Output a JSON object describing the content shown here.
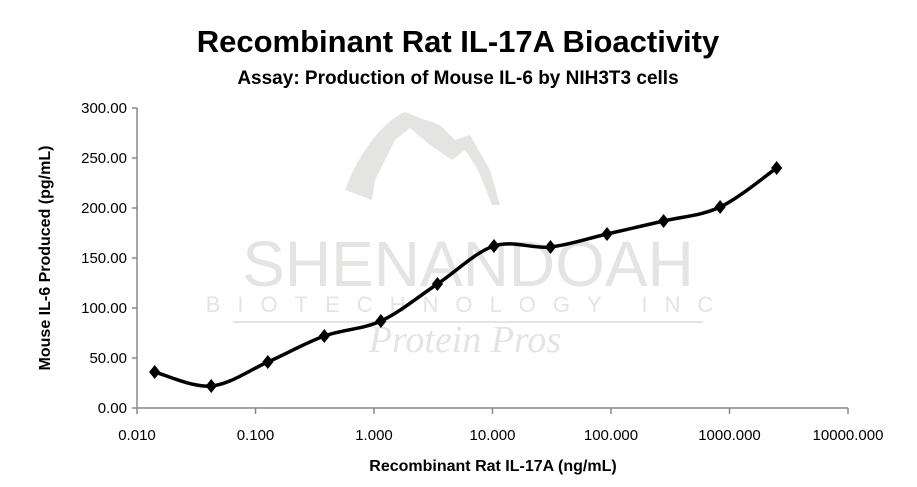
{
  "watermark": {
    "line1": "SHENANDOAH",
    "line2": "BIOTECHNOLOGY INC",
    "line3": "Protein Pros"
  },
  "chart_data": {
    "type": "line",
    "title": "Recombinant Rat IL-17A Bioactivity",
    "subtitle": "Assay: Production of Mouse IL-6 by NIH3T3 cells",
    "xlabel": "Recombinant Rat IL-17A (ng/mL)",
    "ylabel": "Mouse IL-6 Produced (pg/mL)",
    "xscale": "log",
    "xlim": [
      0.01,
      10000
    ],
    "ylim": [
      0,
      300
    ],
    "xticks": [
      "0.010",
      "0.100",
      "1.000",
      "10.000",
      "100.000",
      "1000.000",
      "10000.000"
    ],
    "yticks": [
      "0.00",
      "50.00",
      "100.00",
      "150.00",
      "200.00",
      "250.00",
      "300.00"
    ],
    "grid": false,
    "marker": "diamond",
    "color": "#000000",
    "series": [
      {
        "name": "Mouse IL-6",
        "x": [
          0.0141,
          0.0423,
          0.127,
          0.381,
          1.143,
          3.43,
          10.29,
          30.86,
          92.59,
          277.8,
          833.3,
          2500
        ],
        "y": [
          36,
          22,
          46,
          72,
          87,
          124,
          162,
          161,
          174,
          187,
          201,
          240
        ]
      }
    ]
  }
}
